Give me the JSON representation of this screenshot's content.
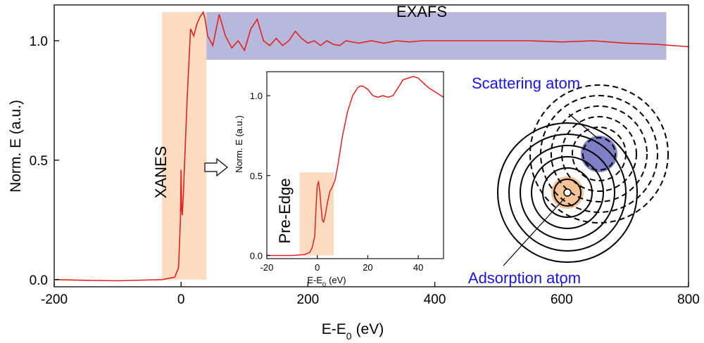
{
  "colors": {
    "curve": "#e4201f",
    "exafs_band": "#b8b8dc",
    "xanes_band": "#fbdcc0",
    "scattering_atom": "#7f7fc6",
    "absorption_atom": "#f4c498",
    "label_blue": "#1a14e0"
  },
  "icons": {
    "arrow": "right-arrow-icon",
    "atom_diagram": "scattering-shells-icon"
  },
  "chart_data": [
    {
      "type": "line",
      "title": "",
      "xlabel": "E-E",
      "xlabel_sub": "0",
      "xlabel_unit": "(eV)",
      "ylabel": "Norm. E (a.u.)",
      "xlim": [
        -200,
        800
      ],
      "ylim": [
        -0.03,
        1.15
      ],
      "xticks": [
        -200,
        0,
        200,
        400,
        600,
        800
      ],
      "xtick_labels": [
        "-200",
        "0",
        "200",
        "400",
        "600",
        "800"
      ],
      "yticks": [
        0.0,
        0.5,
        1.0
      ],
      "ytick_labels": [
        "0.0",
        "0.5",
        "1.0"
      ],
      "grid": false,
      "regions": [
        {
          "label": "XANES",
          "x": [
            -30,
            40
          ],
          "y": [
            0.0,
            1.12
          ]
        },
        {
          "label": "EXAFS",
          "x": [
            40,
            765
          ],
          "y": [
            0.92,
            1.12
          ]
        }
      ],
      "series": [
        {
          "x": [
            -200,
            -150,
            -100,
            -60,
            -30,
            -10,
            -4,
            -1,
            0,
            1,
            2,
            4,
            6,
            10,
            15,
            20,
            25,
            30,
            35,
            38,
            42,
            50,
            60,
            70,
            80,
            90,
            100,
            110,
            120,
            130,
            140,
            150,
            160,
            170,
            180,
            190,
            200,
            210,
            220,
            230,
            240,
            250,
            260,
            280,
            300,
            320,
            340,
            360,
            380,
            400,
            450,
            500,
            550,
            600,
            650,
            700,
            750,
            800
          ],
          "y": [
            0.0,
            -0.003,
            -0.005,
            -0.002,
            0.0,
            0.01,
            0.05,
            0.25,
            0.46,
            0.29,
            0.27,
            0.38,
            0.52,
            0.78,
            1.05,
            1.02,
            1.07,
            1.1,
            1.12,
            1.09,
            1.02,
            0.98,
            1.11,
            1.02,
            0.97,
            1.0,
            0.96,
            1.05,
            1.09,
            1.0,
            0.98,
            1.01,
            0.98,
            1.0,
            1.04,
            1.01,
            0.99,
            1.0,
            0.98,
            1.0,
            0.985,
            0.98,
            1.0,
            0.99,
            1.0,
            0.99,
            1.0,
            0.995,
            1.0,
            1.0,
            1.0,
            1.0,
            1.0,
            0.995,
            1.0,
            0.99,
            0.985,
            0.975
          ]
        }
      ]
    },
    {
      "type": "line",
      "title": "",
      "xlabel": "E-E",
      "xlabel_sub": "0",
      "xlabel_unit": "(eV)",
      "ylabel": "Norm. E (a.u.)",
      "xlim": [
        -20,
        50
      ],
      "ylim": [
        -0.02,
        1.15
      ],
      "xticks": [
        -20,
        0,
        20,
        40
      ],
      "xtick_labels": [
        "-20",
        "0",
        "20",
        "40"
      ],
      "yticks": [
        0.0,
        0.5,
        1.0
      ],
      "ytick_labels": [
        "0.0",
        "0.5",
        "1.0"
      ],
      "grid": false,
      "regions": [
        {
          "label": "Pre-Edge",
          "x": [
            -7,
            6.5
          ],
          "y": [
            0.0,
            0.52
          ]
        }
      ],
      "series": [
        {
          "x": [
            -20,
            -15,
            -10,
            -5,
            -3,
            -2,
            -1,
            -0.5,
            0,
            0.5,
            1,
            1.5,
            2,
            2.5,
            3,
            4,
            5,
            6,
            7,
            8,
            10,
            12,
            14,
            16,
            17,
            18,
            19,
            20,
            22,
            24,
            26,
            28,
            30,
            32,
            34,
            36,
            38,
            40,
            42,
            44,
            46,
            48,
            50
          ],
          "y": [
            0.0,
            0.0,
            0.0,
            0.005,
            0.02,
            0.05,
            0.12,
            0.3,
            0.44,
            0.46,
            0.4,
            0.3,
            0.22,
            0.21,
            0.24,
            0.33,
            0.4,
            0.43,
            0.47,
            0.55,
            0.75,
            0.9,
            1.0,
            1.05,
            1.06,
            1.06,
            1.05,
            1.04,
            1.0,
            0.99,
            1.0,
            0.99,
            1.0,
            1.05,
            1.1,
            1.11,
            1.12,
            1.11,
            1.08,
            1.05,
            1.03,
            1.01,
            0.99
          ]
        }
      ]
    }
  ],
  "diagram": {
    "scattering_label": "Scattering atom",
    "absorption_label": "Adsorption atom"
  }
}
